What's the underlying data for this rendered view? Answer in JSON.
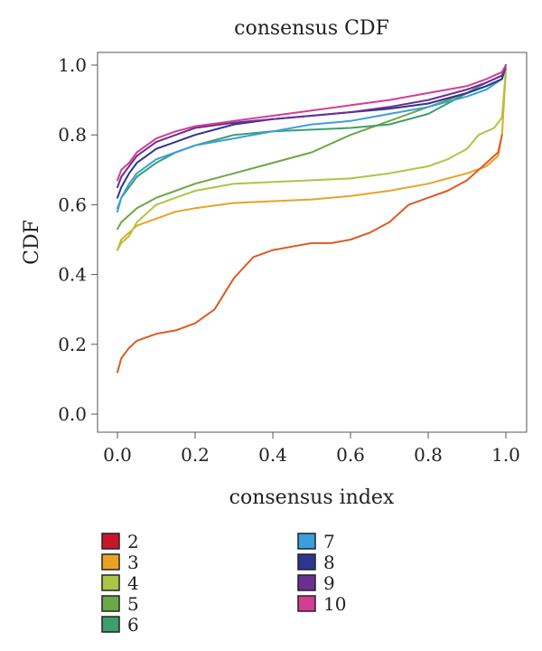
{
  "chart_data": {
    "type": "line",
    "title": "consensus CDF",
    "xlabel": "consensus index",
    "ylabel": "CDF",
    "xlim": [
      0,
      1
    ],
    "ylim": [
      0,
      1
    ],
    "xticks": [
      "0.0",
      "0.2",
      "0.4",
      "0.6",
      "0.8",
      "1.0"
    ],
    "yticks": [
      "0.0",
      "0.2",
      "0.4",
      "0.6",
      "0.8",
      "1.0"
    ],
    "grid": false,
    "legend_position": "bottom",
    "series": [
      {
        "name": "2",
        "color": "#c9152c",
        "x": [],
        "y": []
      },
      {
        "name": "3",
        "color": "#e8a325",
        "x": [
          0.0,
          0.01,
          0.03,
          0.05,
          0.1,
          0.15,
          0.2,
          0.3,
          0.4,
          0.5,
          0.6,
          0.7,
          0.8,
          0.9,
          0.95,
          0.98,
          0.99,
          1.0
        ],
        "y": [
          0.47,
          0.5,
          0.52,
          0.54,
          0.56,
          0.58,
          0.59,
          0.605,
          0.61,
          0.615,
          0.625,
          0.64,
          0.66,
          0.69,
          0.71,
          0.74,
          0.8,
          0.98
        ]
      },
      {
        "name": "4",
        "color": "#a9c745",
        "x": [
          0.0,
          0.01,
          0.03,
          0.05,
          0.1,
          0.15,
          0.2,
          0.3,
          0.4,
          0.5,
          0.6,
          0.7,
          0.8,
          0.85,
          0.9,
          0.93,
          0.97,
          0.99,
          1.0
        ],
        "y": [
          0.47,
          0.49,
          0.51,
          0.55,
          0.6,
          0.62,
          0.64,
          0.66,
          0.665,
          0.67,
          0.675,
          0.69,
          0.71,
          0.73,
          0.76,
          0.8,
          0.82,
          0.85,
          0.99
        ]
      },
      {
        "name": "5",
        "color": "#6ba846",
        "x": [
          0.0,
          0.01,
          0.03,
          0.05,
          0.1,
          0.15,
          0.2,
          0.3,
          0.4,
          0.5,
          0.6,
          0.7,
          0.8,
          0.9,
          0.95,
          0.99,
          1.0
        ],
        "y": [
          0.53,
          0.55,
          0.57,
          0.59,
          0.62,
          0.64,
          0.66,
          0.69,
          0.72,
          0.75,
          0.8,
          0.84,
          0.88,
          0.92,
          0.94,
          0.96,
          0.99
        ]
      },
      {
        "name": "6",
        "color": "#3e9e6d",
        "x": [
          0.0,
          0.01,
          0.03,
          0.05,
          0.1,
          0.15,
          0.2,
          0.3,
          0.4,
          0.5,
          0.6,
          0.7,
          0.8,
          0.9,
          0.95,
          0.99,
          1.0
        ],
        "y": [
          0.59,
          0.62,
          0.65,
          0.68,
          0.72,
          0.75,
          0.77,
          0.8,
          0.81,
          0.815,
          0.82,
          0.83,
          0.86,
          0.92,
          0.95,
          0.97,
          1.0
        ]
      },
      {
        "name": "7",
        "color": "#3a9fdc",
        "x": [
          0.0,
          0.01,
          0.03,
          0.05,
          0.1,
          0.15,
          0.2,
          0.3,
          0.4,
          0.5,
          0.6,
          0.7,
          0.8,
          0.9,
          0.95,
          0.99,
          1.0
        ],
        "y": [
          0.58,
          0.62,
          0.66,
          0.69,
          0.73,
          0.75,
          0.77,
          0.79,
          0.81,
          0.83,
          0.84,
          0.86,
          0.88,
          0.91,
          0.93,
          0.96,
          1.0
        ]
      },
      {
        "name": "8",
        "color": "#2e3590",
        "x": [
          0.0,
          0.01,
          0.03,
          0.05,
          0.1,
          0.15,
          0.2,
          0.3,
          0.4,
          0.5,
          0.6,
          0.7,
          0.8,
          0.9,
          0.95,
          0.99,
          1.0
        ],
        "y": [
          0.62,
          0.65,
          0.69,
          0.72,
          0.76,
          0.78,
          0.8,
          0.83,
          0.845,
          0.855,
          0.865,
          0.875,
          0.89,
          0.92,
          0.94,
          0.96,
          1.0
        ]
      },
      {
        "name": "9",
        "color": "#6b2f8f",
        "x": [
          0.0,
          0.01,
          0.03,
          0.05,
          0.1,
          0.15,
          0.2,
          0.3,
          0.4,
          0.5,
          0.6,
          0.7,
          0.8,
          0.9,
          0.95,
          0.99,
          1.0
        ],
        "y": [
          0.65,
          0.68,
          0.71,
          0.74,
          0.78,
          0.8,
          0.82,
          0.835,
          0.845,
          0.855,
          0.865,
          0.88,
          0.9,
          0.93,
          0.95,
          0.97,
          1.0
        ]
      },
      {
        "name": "10",
        "color": "#d23e94",
        "x": [
          0.0,
          0.01,
          0.03,
          0.05,
          0.1,
          0.15,
          0.2,
          0.3,
          0.4,
          0.5,
          0.6,
          0.7,
          0.8,
          0.9,
          0.95,
          0.99,
          1.0
        ],
        "y": [
          0.67,
          0.7,
          0.72,
          0.75,
          0.79,
          0.81,
          0.825,
          0.84,
          0.855,
          0.87,
          0.885,
          0.9,
          0.92,
          0.94,
          0.96,
          0.98,
          1.0
        ]
      },
      {
        "name": "",
        "color": "#dd5a24",
        "x": [
          0.0,
          0.01,
          0.03,
          0.05,
          0.1,
          0.15,
          0.2,
          0.25,
          0.3,
          0.35,
          0.4,
          0.45,
          0.5,
          0.55,
          0.6,
          0.65,
          0.7,
          0.75,
          0.8,
          0.85,
          0.9,
          0.95,
          0.98,
          0.99
        ],
        "y": [
          0.12,
          0.16,
          0.19,
          0.21,
          0.23,
          0.24,
          0.26,
          0.3,
          0.39,
          0.45,
          0.47,
          0.48,
          0.49,
          0.49,
          0.5,
          0.52,
          0.55,
          0.6,
          0.62,
          0.64,
          0.67,
          0.72,
          0.75,
          0.8
        ]
      }
    ]
  }
}
